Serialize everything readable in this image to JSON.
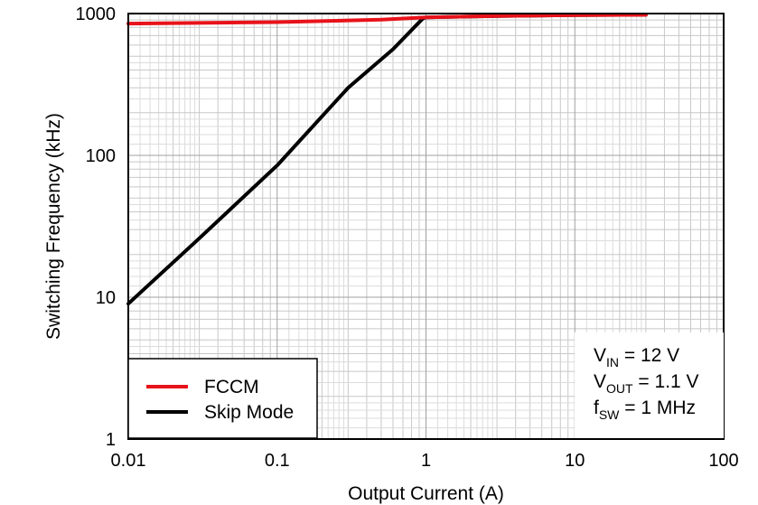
{
  "chart_data": {
    "type": "line",
    "xlabel": "Output Current (A)",
    "ylabel": "Switching Frequency (kHz)",
    "x_scale": "log",
    "y_scale": "log",
    "xlim": [
      0.01,
      100
    ],
    "ylim": [
      1,
      1000
    ],
    "x_ticks": [
      "0.01",
      "0.1",
      "1",
      "10",
      "100"
    ],
    "y_ticks": [
      "1",
      "10",
      "100",
      "1000"
    ],
    "grid": true,
    "legend_position": "bottom-left",
    "series": [
      {
        "name": "FCCM",
        "color": "#e8121a",
        "points": [
          [
            0.01,
            850
          ],
          [
            0.1,
            870
          ],
          [
            0.5,
            905
          ],
          [
            1.0,
            940
          ],
          [
            3,
            960
          ],
          [
            10,
            975
          ],
          [
            30,
            980
          ]
        ]
      },
      {
        "name": "Skip Mode",
        "color": "#000000",
        "points": [
          [
            0.01,
            9
          ],
          [
            0.03,
            26
          ],
          [
            0.1,
            85
          ],
          [
            0.3,
            300
          ],
          [
            0.6,
            560
          ],
          [
            0.95,
            920
          ],
          [
            1.0,
            940
          ],
          [
            3,
            960
          ],
          [
            10,
            975
          ],
          [
            30,
            980
          ]
        ]
      }
    ],
    "annotations": [
      {
        "main": "V",
        "sub": "IN",
        "rest": " = 12 V"
      },
      {
        "main": "V",
        "sub": "OUT",
        "rest": " = 1.1 V"
      },
      {
        "main": "f",
        "sub": "SW",
        "rest": " = 1 MHz"
      }
    ]
  }
}
